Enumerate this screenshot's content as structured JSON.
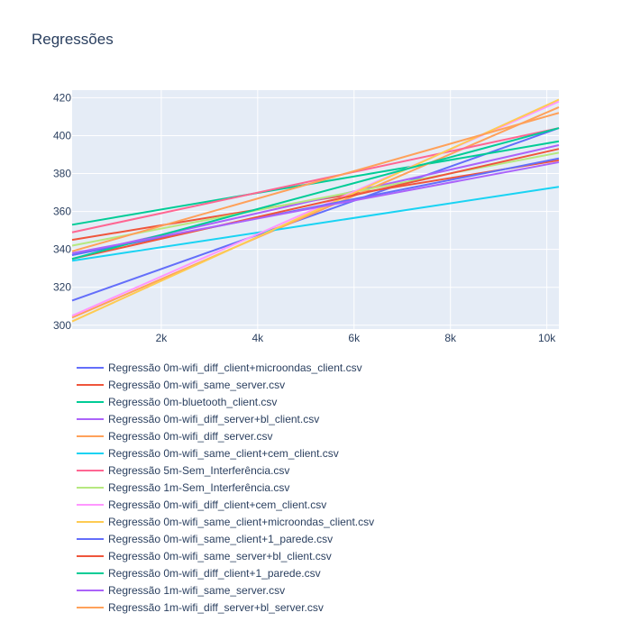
{
  "chart_data": {
    "type": "line",
    "title": "Regressões",
    "xlabel": "",
    "ylabel": "",
    "xlim": [
      150,
      10250
    ],
    "ylim": [
      298,
      424
    ],
    "xticks": [
      2000,
      4000,
      6000,
      8000,
      10000
    ],
    "xtick_labels": [
      "2k",
      "4k",
      "6k",
      "8k",
      "10k"
    ],
    "yticks": [
      300,
      320,
      340,
      360,
      380,
      400,
      420
    ],
    "ytick_labels": [
      "300",
      "320",
      "340",
      "360",
      "380",
      "400",
      "420"
    ],
    "grid": true,
    "legend_position": "bottom",
    "series": [
      {
        "name": "Regressão 0m-wifi_diff_client+microondas_client.csv",
        "color": "#636efa",
        "x": [
          150,
          10250
        ],
        "y": [
          313,
          404
        ]
      },
      {
        "name": "Regressão 0m-wifi_same_server.csv",
        "color": "#EF553B",
        "x": [
          150,
          10250
        ],
        "y": [
          345,
          387
        ]
      },
      {
        "name": "Regressão 0m-bluetooth_client.csv",
        "color": "#00cc96",
        "x": [
          150,
          10250
        ],
        "y": [
          353,
          397
        ]
      },
      {
        "name": "Regressão 0m-wifi_diff_server+bl_client.csv",
        "color": "#ab63fa",
        "x": [
          150,
          10250
        ],
        "y": [
          337,
          395
        ]
      },
      {
        "name": "Regressão 0m-wifi_diff_server.csv",
        "color": "#FFA15A",
        "x": [
          150,
          10250
        ],
        "y": [
          304,
          415
        ]
      },
      {
        "name": "Regressão 0m-wifi_same_client+cem_client.csv",
        "color": "#19d3f3",
        "x": [
          150,
          10250
        ],
        "y": [
          334,
          373
        ]
      },
      {
        "name": "Regressão 5m-Sem_Interferência.csv",
        "color": "#FF6692",
        "x": [
          150,
          10250
        ],
        "y": [
          349,
          404
        ]
      },
      {
        "name": "Regressão 1m-Sem_Interferência.csv",
        "color": "#B6E880",
        "x": [
          150,
          10250
        ],
        "y": [
          342,
          391
        ]
      },
      {
        "name": "Regressão 0m-wifi_diff_client+cem_client.csv",
        "color": "#FF97FF",
        "x": [
          150,
          10250
        ],
        "y": [
          305,
          418
        ]
      },
      {
        "name": "Regressão 0m-wifi_same_client+microondas_client.csv",
        "color": "#FECB52",
        "x": [
          150,
          10250
        ],
        "y": [
          302,
          419
        ]
      },
      {
        "name": "Regressão 0m-wifi_same_client+1_parede.csv",
        "color": "#636efa",
        "x": [
          150,
          10250
        ],
        "y": [
          337,
          388
        ]
      },
      {
        "name": "Regressão 0m-wifi_same_server+bl_client.csv",
        "color": "#EF553B",
        "x": [
          150,
          10250
        ],
        "y": [
          335,
          393
        ]
      },
      {
        "name": "Regressão 0m-wifi_diff_client+1_parede.csv",
        "color": "#00cc96",
        "x": [
          150,
          10250
        ],
        "y": [
          335,
          404
        ]
      },
      {
        "name": "Regressão 1m-wifi_same_server.csv",
        "color": "#ab63fa",
        "x": [
          150,
          10250
        ],
        "y": [
          338,
          386
        ]
      },
      {
        "name": "Regressão 1m-wifi_diff_server+bl_server.csv",
        "color": "#FFA15A",
        "x": [
          150,
          10250
        ],
        "y": [
          339,
          412
        ]
      }
    ]
  }
}
